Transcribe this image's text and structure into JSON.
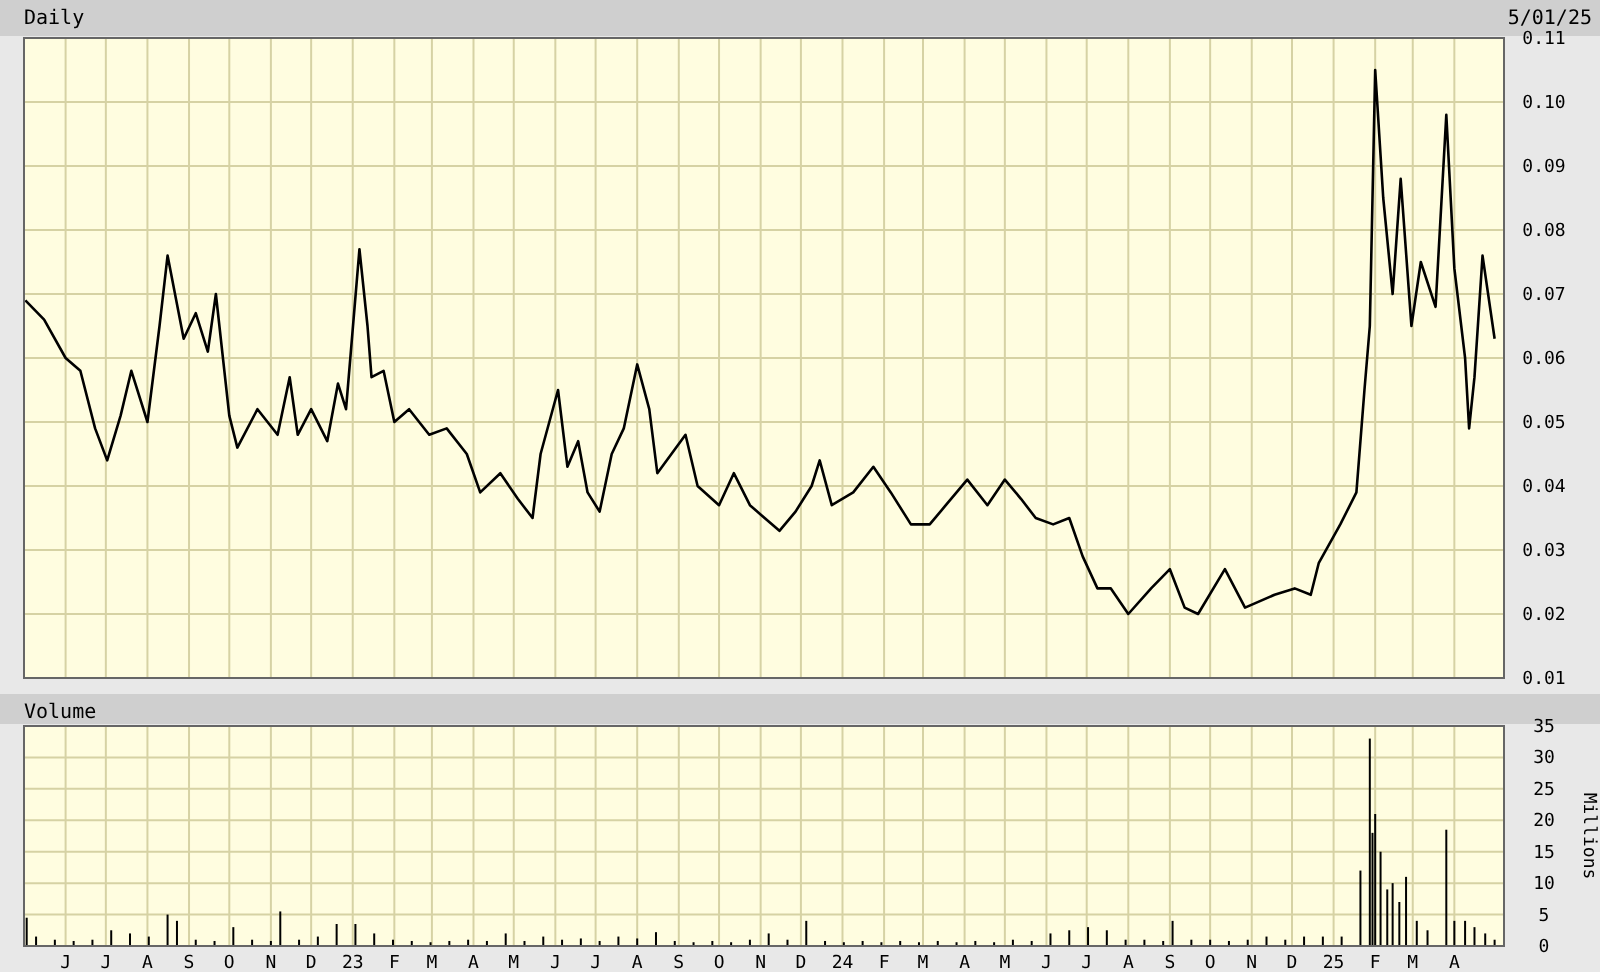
{
  "chart_data": [
    {
      "type": "line",
      "title": "Daily",
      "annotations": [
        "5/01/25"
      ],
      "xlim": [
        "2022-05-01",
        "2025-05-08"
      ],
      "ylim": [
        0.01,
        0.11
      ],
      "xticks": [
        "2022-06-01",
        "2022-07-01",
        "2022-08-01",
        "2022-09-01",
        "2022-10-01",
        "2022-11-01",
        "2022-12-01",
        "2023-01-01",
        "2023-02-01",
        "2023-03-01",
        "2023-04-01",
        "2023-05-01",
        "2023-06-01",
        "2023-07-01",
        "2023-08-01",
        "2023-09-01",
        "2023-10-01",
        "2023-11-01",
        "2023-12-01",
        "2024-01-01",
        "2024-02-01",
        "2024-03-01",
        "2024-04-01",
        "2024-05-01",
        "2024-06-01",
        "2024-07-01",
        "2024-08-01",
        "2024-09-01",
        "2024-10-01",
        "2024-11-01",
        "2024-12-01",
        "2025-01-01",
        "2025-02-01",
        "2025-03-01",
        "2025-04-01"
      ],
      "yticks": [
        0.01,
        0.02,
        0.03,
        0.04,
        0.05,
        0.06,
        0.07,
        0.08,
        0.09,
        {
          "value": 0.1,
          "label": "0.10"
        },
        0.11
      ],
      "grid": true,
      "tick_labels": "y",
      "x": [
        "2022-05-02",
        "2022-05-16",
        "2022-06-01",
        "2022-06-12",
        "2022-06-23",
        "2022-07-02",
        "2022-07-12",
        "2022-07-20",
        "2022-08-01",
        "2022-08-10",
        "2022-08-16",
        "2022-08-28",
        "2022-09-06",
        "2022-09-15",
        "2022-09-21",
        "2022-10-01",
        "2022-10-07",
        "2022-10-22",
        "2022-11-06",
        "2022-11-15",
        "2022-11-21",
        "2022-12-01",
        "2022-12-13",
        "2022-12-21",
        "2022-12-27",
        "2023-01-06",
        "2023-01-12",
        "2023-01-15",
        "2023-01-24",
        "2023-02-01",
        "2023-02-12",
        "2023-02-27",
        "2023-03-12",
        "2023-03-27",
        "2023-04-06",
        "2023-04-21",
        "2023-05-04",
        "2023-05-15",
        "2023-05-21",
        "2023-06-03",
        "2023-06-10",
        "2023-06-18",
        "2023-06-25",
        "2023-07-04",
        "2023-07-13",
        "2023-07-22",
        "2023-08-01",
        "2023-08-10",
        "2023-08-16",
        "2023-09-06",
        "2023-09-15",
        "2023-10-01",
        "2023-10-12",
        "2023-10-24",
        "2023-11-15",
        "2023-11-27",
        "2023-12-09",
        "2023-12-15",
        "2023-12-24",
        "2024-01-09",
        "2024-01-24",
        "2024-02-06",
        "2024-02-21",
        "2024-03-06",
        "2024-03-18",
        "2024-04-03",
        "2024-04-18",
        "2024-05-01",
        "2024-05-13",
        "2024-05-24",
        "2024-06-06",
        "2024-06-18",
        "2024-06-28",
        "2024-07-09",
        "2024-07-19",
        "2024-08-01",
        "2024-08-18",
        "2024-09-01",
        "2024-09-12",
        "2024-09-22",
        "2024-10-12",
        "2024-10-27",
        "2024-11-18",
        "2024-12-03",
        "2024-12-15",
        "2024-12-21",
        "2025-01-06",
        "2025-01-18",
        "2025-01-24",
        "2025-01-28",
        "2025-02-01",
        "2025-02-07",
        "2025-02-14",
        "2025-02-20",
        "2025-02-28",
        "2025-03-07",
        "2025-03-18",
        "2025-03-26",
        "2025-04-01",
        "2025-04-09",
        "2025-04-12",
        "2025-04-16",
        "2025-04-22",
        "2025-05-01"
      ],
      "series": [
        {
          "color": "#000000",
          "values": [
            0.069,
            0.066,
            0.06,
            0.058,
            0.049,
            0.044,
            0.051,
            0.058,
            0.05,
            0.065,
            0.076,
            0.063,
            0.067,
            0.061,
            0.07,
            0.051,
            0.046,
            0.052,
            0.048,
            0.057,
            0.048,
            0.052,
            0.047,
            0.056,
            0.052,
            0.077,
            0.065,
            0.057,
            0.058,
            0.05,
            0.052,
            0.048,
            0.049,
            0.045,
            0.039,
            0.042,
            0.038,
            0.035,
            0.045,
            0.055,
            0.043,
            0.047,
            0.039,
            0.036,
            0.045,
            0.049,
            0.059,
            0.052,
            0.042,
            0.048,
            0.04,
            0.037,
            0.042,
            0.037,
            0.033,
            0.036,
            0.04,
            0.044,
            0.037,
            0.039,
            0.043,
            0.039,
            0.034,
            0.034,
            0.037,
            0.041,
            0.037,
            0.041,
            0.038,
            0.035,
            0.034,
            0.035,
            0.029,
            0.024,
            0.024,
            0.02,
            0.024,
            0.027,
            0.021,
            0.02,
            0.027,
            0.021,
            0.023,
            0.024,
            0.023,
            0.028,
            0.034,
            0.039,
            0.055,
            0.065,
            0.105,
            0.085,
            0.07,
            0.088,
            0.065,
            0.075,
            0.068,
            0.098,
            0.074,
            0.06,
            0.049,
            0.057,
            0.076,
            0.063
          ]
        }
      ]
    },
    {
      "type": "bar",
      "title": "Volume",
      "ylabel": "Millions",
      "xlim": [
        "2022-05-01",
        "2025-05-08"
      ],
      "ylim": [
        0,
        35
      ],
      "yticks": [
        0,
        5,
        10,
        15,
        20,
        25,
        30,
        35
      ],
      "grid": true,
      "xticks": [
        {
          "value": "2022-06-01",
          "label": "J"
        },
        {
          "value": "2022-07-01",
          "label": "J"
        },
        {
          "value": "2022-08-01",
          "label": "A"
        },
        {
          "value": "2022-09-01",
          "label": "S"
        },
        {
          "value": "2022-10-01",
          "label": "O"
        },
        {
          "value": "2022-11-01",
          "label": "N"
        },
        {
          "value": "2022-12-01",
          "label": "D"
        },
        {
          "value": "2023-01-01",
          "label": "23"
        },
        {
          "value": "2023-02-01",
          "label": "F"
        },
        {
          "value": "2023-03-01",
          "label": "M"
        },
        {
          "value": "2023-04-01",
          "label": "A"
        },
        {
          "value": "2023-05-01",
          "label": "M"
        },
        {
          "value": "2023-06-01",
          "label": "J"
        },
        {
          "value": "2023-07-01",
          "label": "J"
        },
        {
          "value": "2023-08-01",
          "label": "A"
        },
        {
          "value": "2023-09-01",
          "label": "S"
        },
        {
          "value": "2023-10-01",
          "label": "O"
        },
        {
          "value": "2023-11-01",
          "label": "N"
        },
        {
          "value": "2023-12-01",
          "label": "D"
        },
        {
          "value": "2024-01-01",
          "label": "24"
        },
        {
          "value": "2024-02-01",
          "label": "F"
        },
        {
          "value": "2024-03-01",
          "label": "M"
        },
        {
          "value": "2024-04-01",
          "label": "A"
        },
        {
          "value": "2024-05-01",
          "label": "M"
        },
        {
          "value": "2024-06-01",
          "label": "J"
        },
        {
          "value": "2024-07-01",
          "label": "J"
        },
        {
          "value": "2024-08-01",
          "label": "A"
        },
        {
          "value": "2024-09-01",
          "label": "S"
        },
        {
          "value": "2024-10-01",
          "label": "O"
        },
        {
          "value": "2024-11-01",
          "label": "N"
        },
        {
          "value": "2024-12-01",
          "label": "D"
        },
        {
          "value": "2025-01-01",
          "label": "25"
        },
        {
          "value": "2025-02-01",
          "label": "F"
        },
        {
          "value": "2025-03-01",
          "label": "M"
        },
        {
          "value": "2025-04-01",
          "label": "A"
        }
      ],
      "x": [
        "2022-05-03",
        "2022-05-10",
        "2022-05-24",
        "2022-06-07",
        "2022-06-21",
        "2022-07-05",
        "2022-07-19",
        "2022-08-02",
        "2022-08-16",
        "2022-08-23",
        "2022-09-06",
        "2022-09-20",
        "2022-10-04",
        "2022-10-18",
        "2022-11-01",
        "2022-11-08",
        "2022-11-22",
        "2022-12-06",
        "2022-12-20",
        "2023-01-03",
        "2023-01-17",
        "2023-01-31",
        "2023-02-14",
        "2023-02-28",
        "2023-03-14",
        "2023-03-28",
        "2023-04-11",
        "2023-04-25",
        "2023-05-09",
        "2023-05-23",
        "2023-06-06",
        "2023-06-20",
        "2023-07-04",
        "2023-07-18",
        "2023-08-01",
        "2023-08-15",
        "2023-08-29",
        "2023-09-12",
        "2023-09-26",
        "2023-10-10",
        "2023-10-24",
        "2023-11-07",
        "2023-11-21",
        "2023-12-05",
        "2023-12-19",
        "2024-01-02",
        "2024-01-16",
        "2024-01-30",
        "2024-02-13",
        "2024-02-27",
        "2024-03-12",
        "2024-03-26",
        "2024-04-09",
        "2024-04-23",
        "2024-05-07",
        "2024-05-21",
        "2024-06-04",
        "2024-06-18",
        "2024-07-02",
        "2024-07-16",
        "2024-07-30",
        "2024-08-13",
        "2024-08-27",
        "2024-09-03",
        "2024-09-17",
        "2024-10-01",
        "2024-10-15",
        "2024-10-29",
        "2024-11-12",
        "2024-11-26",
        "2024-12-10",
        "2024-12-24",
        "2025-01-07",
        "2025-01-21",
        "2025-01-28",
        "2025-01-30",
        "2025-02-01",
        "2025-02-05",
        "2025-02-10",
        "2025-02-14",
        "2025-02-19",
        "2025-02-24",
        "2025-03-04",
        "2025-03-12",
        "2025-03-26",
        "2025-04-01",
        "2025-04-09",
        "2025-04-16",
        "2025-04-24",
        "2025-05-01"
      ],
      "series": [
        {
          "color": "#000000",
          "values": [
            4.5,
            1.5,
            1,
            0.8,
            1,
            2.5,
            2,
            1.5,
            5,
            4,
            1,
            0.8,
            3,
            1,
            0.8,
            5.5,
            1,
            1.5,
            3.5,
            3.5,
            2,
            1,
            0.8,
            0.6,
            0.8,
            1,
            0.8,
            2,
            0.8,
            1.5,
            1,
            1.2,
            0.8,
            1.5,
            1.2,
            2.2,
            0.8,
            0.6,
            0.8,
            0.6,
            1,
            2,
            1,
            4,
            0.8,
            0.6,
            0.8,
            0.6,
            0.8,
            0.6,
            0.8,
            0.6,
            0.8,
            0.6,
            1,
            0.8,
            2,
            2.5,
            3,
            2.5,
            1,
            1,
            0.8,
            4,
            1,
            1,
            0.8,
            1,
            1.5,
            1,
            1.5,
            1.5,
            1.5,
            12,
            33,
            18,
            21,
            15,
            9,
            10,
            7,
            11,
            4,
            2.5,
            18.5,
            4,
            4,
            3,
            2,
            1
          ]
        }
      ]
    }
  ]
}
